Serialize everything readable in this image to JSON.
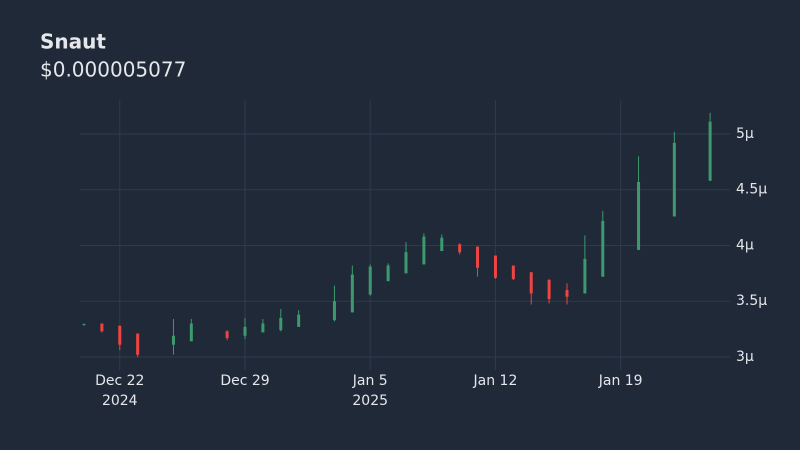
{
  "chart_data": {
    "type": "candlestick",
    "title": "Snaut",
    "subtitle": "$0.000005077",
    "up_color": "#3d9a6e",
    "down_color": "#ef4444",
    "grid": true,
    "x": [
      "2024-12-20",
      "2024-12-21",
      "2024-12-22",
      "2024-12-23",
      "2024-12-25",
      "2024-12-26",
      "2024-12-28",
      "2024-12-29",
      "2024-12-30",
      "2024-12-31",
      "2025-01-01",
      "2025-01-03",
      "2025-01-04",
      "2025-01-05",
      "2025-01-06",
      "2025-01-07",
      "2025-01-08",
      "2025-01-09",
      "2025-01-10",
      "2025-01-11",
      "2025-01-12",
      "2025-01-13",
      "2025-01-14",
      "2025-01-15",
      "2025-01-16",
      "2025-01-17",
      "2025-01-18",
      "2025-01-20",
      "2025-01-22",
      "2025-01-24"
    ],
    "open": [
      3.29e-06,
      3.3e-06,
      3.28e-06,
      3.21e-06,
      3.11e-06,
      3.14e-06,
      3.23e-06,
      3.19e-06,
      3.22e-06,
      3.24e-06,
      3.27e-06,
      3.33e-06,
      3.4e-06,
      3.56e-06,
      3.68e-06,
      3.75e-06,
      3.83e-06,
      3.95e-06,
      4.01e-06,
      3.99e-06,
      3.91e-06,
      3.82e-06,
      3.76e-06,
      3.69e-06,
      3.6e-06,
      3.57e-06,
      3.72e-06,
      3.96e-06,
      4.26e-06,
      4.58e-06
    ],
    "high": [
      3.3e-06,
      3.3e-06,
      3.28e-06,
      3.21e-06,
      3.34e-06,
      3.34e-06,
      3.24e-06,
      3.35e-06,
      3.34e-06,
      3.43e-06,
      3.42e-06,
      3.64e-06,
      3.82e-06,
      3.83e-06,
      3.84e-06,
      4.03e-06,
      4.11e-06,
      4.1e-06,
      4.02e-06,
      3.99e-06,
      3.91e-06,
      3.82e-06,
      3.76e-06,
      3.7e-06,
      3.66e-06,
      4.09e-06,
      4.31e-06,
      4.8e-06,
      5.02e-06,
      5.19e-06
    ],
    "low": [
      3.28e-06,
      3.22e-06,
      3.06e-06,
      3e-06,
      3.02e-06,
      3.14e-06,
      3.15e-06,
      3.16e-06,
      3.22e-06,
      3.23e-06,
      3.27e-06,
      3.32e-06,
      3.4e-06,
      3.55e-06,
      3.68e-06,
      3.75e-06,
      3.83e-06,
      3.95e-06,
      3.92e-06,
      3.72e-06,
      3.7e-06,
      3.69e-06,
      3.47e-06,
      3.48e-06,
      3.47e-06,
      3.57e-06,
      3.72e-06,
      3.96e-06,
      4.26e-06,
      4.58e-06
    ],
    "close": [
      3.295e-06,
      3.23e-06,
      3.11e-06,
      3.02e-06,
      3.19e-06,
      3.3e-06,
      3.17e-06,
      3.27e-06,
      3.3e-06,
      3.35e-06,
      3.38e-06,
      3.5e-06,
      3.74e-06,
      3.81e-06,
      3.82e-06,
      3.94e-06,
      4.08e-06,
      4.07e-06,
      3.94e-06,
      3.8e-06,
      3.71e-06,
      3.7e-06,
      3.57e-06,
      3.52e-06,
      3.54e-06,
      3.88e-06,
      4.22e-06,
      4.57e-06,
      4.92e-06,
      5.11e-06
    ],
    "xlim": [
      "2024-12-20",
      "2025-01-25"
    ],
    "xticks": [
      {
        "value": "2024-12-22",
        "label": "Dec 22"
      },
      {
        "value": "2024-12-29",
        "label": "Dec 29"
      },
      {
        "value": "2025-01-05",
        "label": "Jan 5"
      },
      {
        "value": "2025-01-12",
        "label": "Jan 12"
      },
      {
        "value": "2025-01-19",
        "label": "Jan 19"
      }
    ],
    "xtick_years": [
      {
        "value": "2024-12-22",
        "label": "2024"
      },
      {
        "value": "2025-01-05",
        "label": "2025"
      }
    ],
    "ylim": [
      2.883e-06,
      5.305e-06
    ],
    "yticks": [
      {
        "value": 3e-06,
        "label": "3µ"
      },
      {
        "value": 3.5e-06,
        "label": "3.5µ"
      },
      {
        "value": 4e-06,
        "label": "4µ"
      },
      {
        "value": 4.5e-06,
        "label": "4.5µ"
      },
      {
        "value": 5e-06,
        "label": "5µ"
      }
    ]
  }
}
